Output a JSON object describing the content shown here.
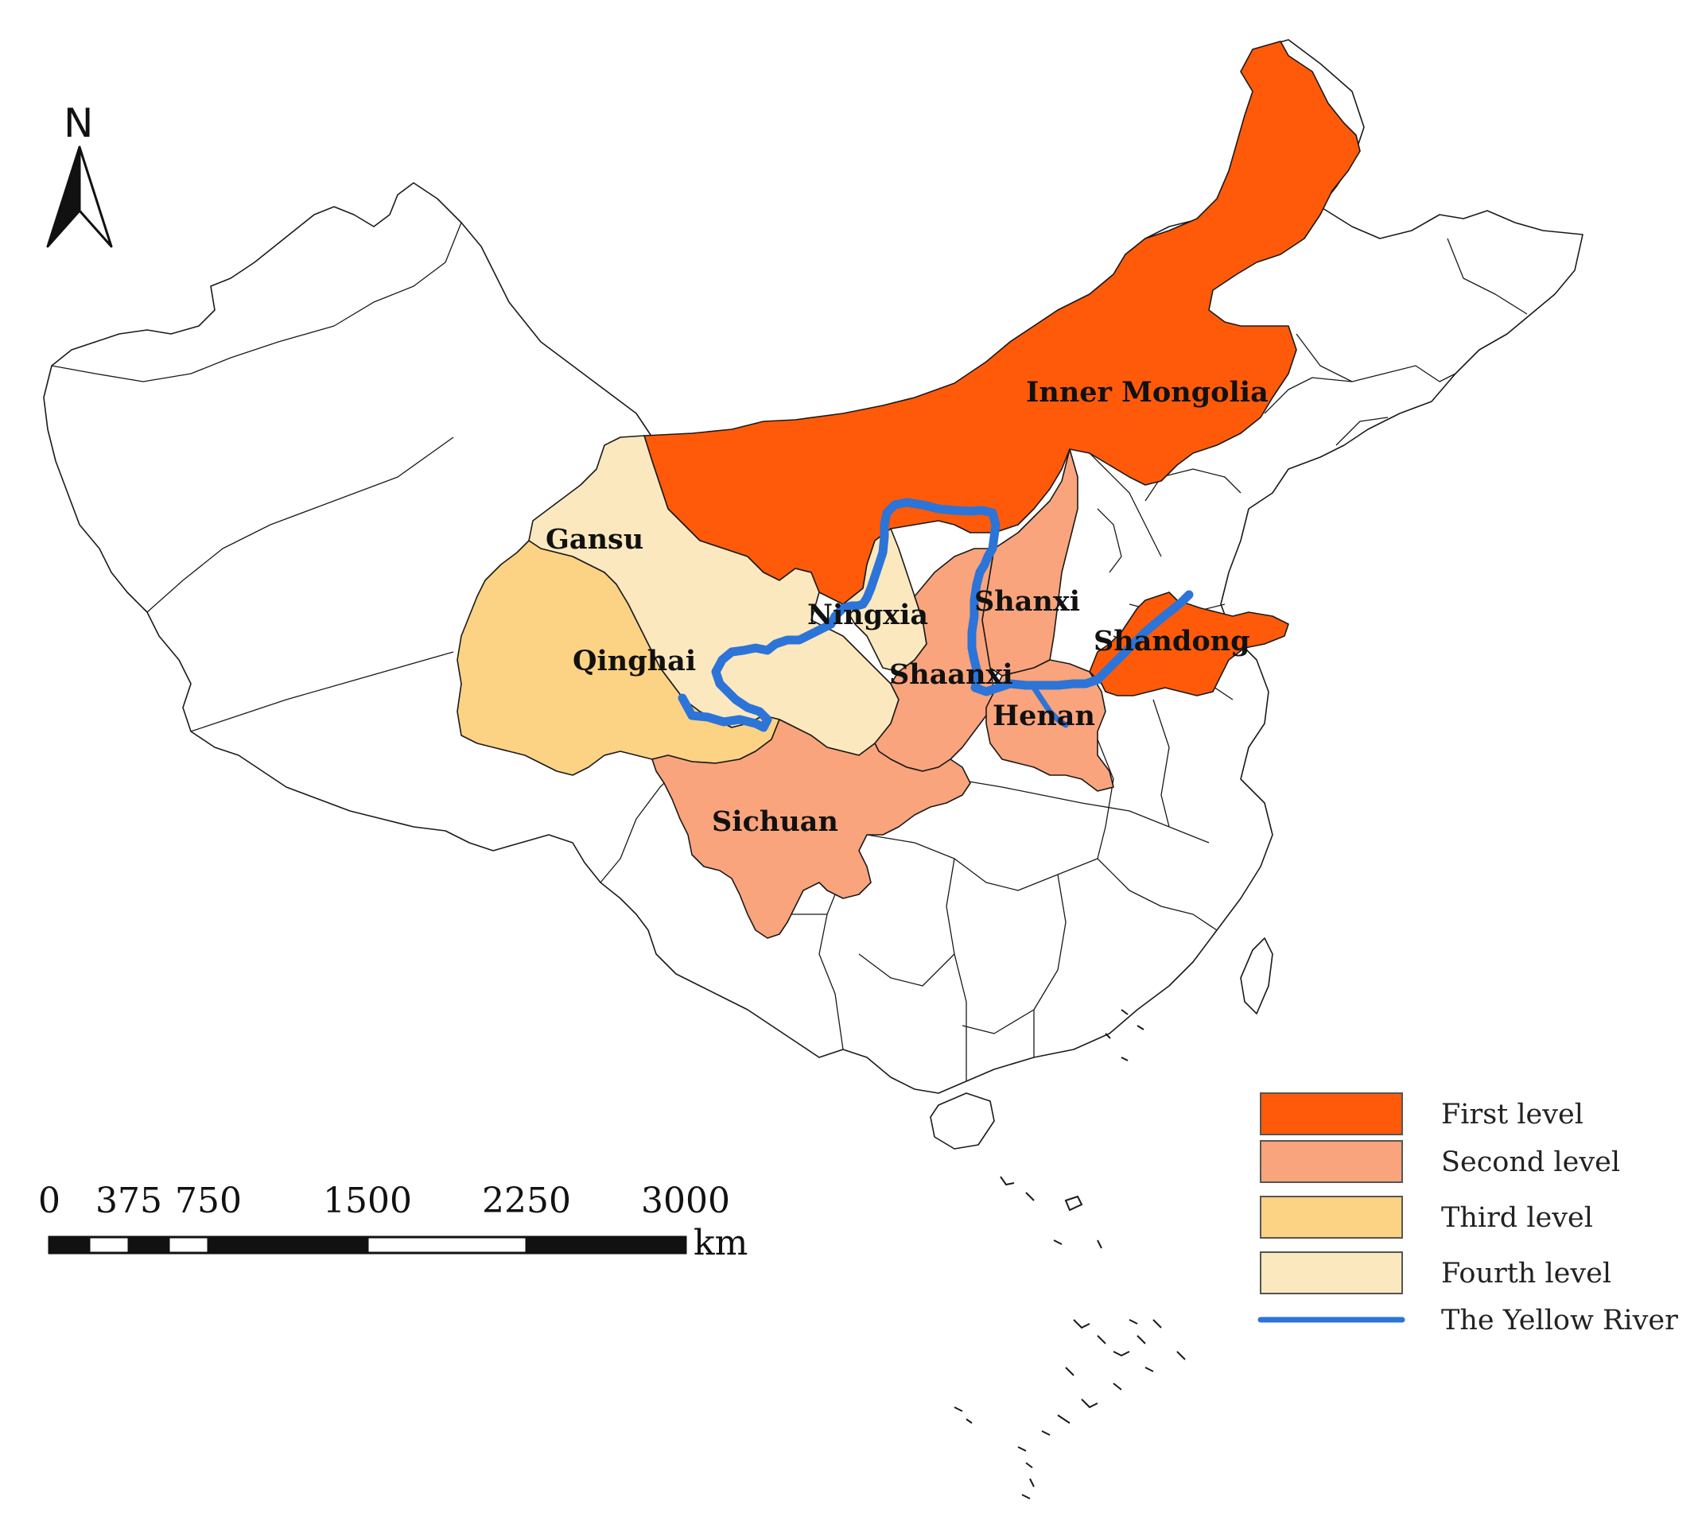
{
  "north_arrow": {
    "label": "N"
  },
  "provinces": [
    {
      "id": "inner-mongolia",
      "label": "Inner Mongolia",
      "level": 1
    },
    {
      "id": "shandong",
      "label": "Shandong",
      "level": 1
    },
    {
      "id": "shanxi",
      "label": "Shanxi",
      "level": 2
    },
    {
      "id": "shaanxi",
      "label": "Shaanxi",
      "level": 2
    },
    {
      "id": "henan",
      "label": "Henan",
      "level": 2
    },
    {
      "id": "sichuan",
      "label": "Sichuan",
      "level": 2
    },
    {
      "id": "qinghai",
      "label": "Qinghai",
      "level": 3
    },
    {
      "id": "gansu",
      "label": "Gansu",
      "level": 4
    },
    {
      "id": "ningxia",
      "label": "Ningxia",
      "level": 4
    }
  ],
  "legend": {
    "items": [
      {
        "label": "First level",
        "color": "#ff5a0a",
        "kind": "fill"
      },
      {
        "label": "Second level",
        "color": "#f9a47c",
        "kind": "fill"
      },
      {
        "label": "Third level",
        "color": "#fcd384",
        "kind": "fill"
      },
      {
        "label": "Fourth level",
        "color": "#fbe8bf",
        "kind": "fill"
      },
      {
        "label": "The Yellow River",
        "color": "#2c74d8",
        "kind": "line"
      }
    ]
  },
  "scale_bar": {
    "ticks": [
      "0",
      "375",
      "750",
      "1500",
      "2250",
      "3000"
    ],
    "values": [
      0,
      375,
      750,
      1500,
      2250,
      3000
    ],
    "unit": "km"
  },
  "colors": {
    "level_1": "#ff5a0a",
    "level_2": "#f9a47c",
    "level_3": "#fcd384",
    "level_4": "#fbe8bf",
    "river": "#2c74d8",
    "other_region": "#ffffff"
  }
}
